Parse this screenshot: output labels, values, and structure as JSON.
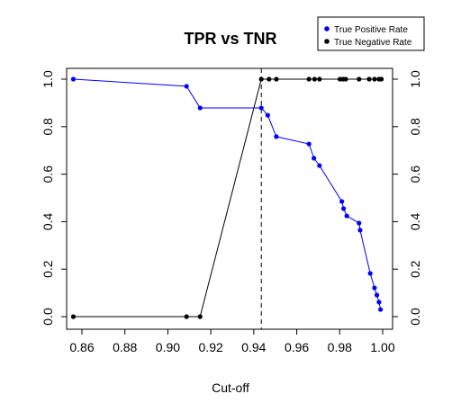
{
  "chart_data": {
    "type": "line",
    "title": "TPR vs TNR",
    "xlabel": "Cut-off",
    "ylabel": "",
    "xlim": [
      0.85,
      1.0
    ],
    "ylim": [
      0.0,
      1.0
    ],
    "x_ticks": [
      "0.86",
      "0.88",
      "0.90",
      "0.92",
      "0.94",
      "0.96",
      "0.98",
      "1.00"
    ],
    "y_ticks": [
      "0.0",
      "0.2",
      "0.4",
      "0.6",
      "0.8",
      "1.0"
    ],
    "right_y_ticks": [
      "0.0",
      "0.2",
      "0.4",
      "0.6",
      "0.8",
      "1.0"
    ],
    "vline": {
      "x": 0.9435,
      "style": "dashed",
      "color": "#000000"
    },
    "legend": {
      "position": "top-right"
    },
    "series": [
      {
        "name": "True Positive Rate",
        "color": "#0000ff",
        "x": [
          0.856,
          0.9087,
          0.915,
          0.9435,
          0.9465,
          0.9505,
          0.9657,
          0.968,
          0.9706,
          0.981,
          0.9818,
          0.9833,
          0.989,
          0.9895,
          0.9942,
          0.9962,
          0.9973,
          0.9983,
          0.999
        ],
        "y": [
          1.0,
          0.97,
          0.879,
          0.879,
          0.848,
          0.758,
          0.727,
          0.667,
          0.636,
          0.485,
          0.455,
          0.424,
          0.394,
          0.364,
          0.182,
          0.121,
          0.091,
          0.061,
          0.03
        ]
      },
      {
        "name": "True Negative Rate",
        "color": "#000000",
        "x": [
          0.856,
          0.9087,
          0.915,
          0.9435,
          0.9471,
          0.9505,
          0.9657,
          0.9683,
          0.9706,
          0.9801,
          0.9815,
          0.9828,
          0.989,
          0.9937,
          0.9962,
          0.9983,
          0.9994
        ],
        "y": [
          0.0,
          0.0,
          0.0,
          1.0,
          1.0,
          1.0,
          1.0,
          1.0,
          1.0,
          1.0,
          1.0,
          1.0,
          1.0,
          1.0,
          1.0,
          1.0,
          1.0
        ]
      }
    ]
  }
}
